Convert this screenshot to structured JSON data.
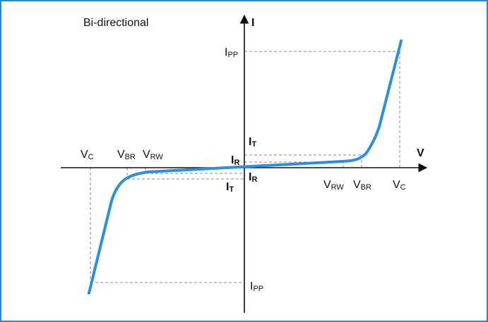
{
  "title": "Bi-directional",
  "axes": {
    "current_label": "I",
    "voltage_label": "V"
  },
  "labels": {
    "ipp_top": {
      "main": "I",
      "sub": "PP"
    },
    "ipp_bottom": {
      "main": "I",
      "sub": "PP"
    },
    "it_top": {
      "main": "I",
      "sub": "T"
    },
    "it_bottom": {
      "main": "I",
      "sub": "T"
    },
    "ir_top": {
      "main": "I",
      "sub": "R"
    },
    "ir_bottom": {
      "main": "I",
      "sub": "R"
    },
    "vc_left": {
      "main": "V",
      "sub": "C"
    },
    "vbr_left": {
      "main": "V",
      "sub": "BR"
    },
    "vrw_left": {
      "main": "V",
      "sub": "RW"
    },
    "vrw_right": {
      "main": "V",
      "sub": "RW"
    },
    "vbr_right": {
      "main": "V",
      "sub": "BR"
    },
    "vc_right": {
      "main": "V",
      "sub": "C"
    }
  },
  "colors": {
    "border": "#1b8fd6",
    "curve": "#2a8fe0",
    "axis": "#111111",
    "guide": "#8a8a8a"
  }
}
